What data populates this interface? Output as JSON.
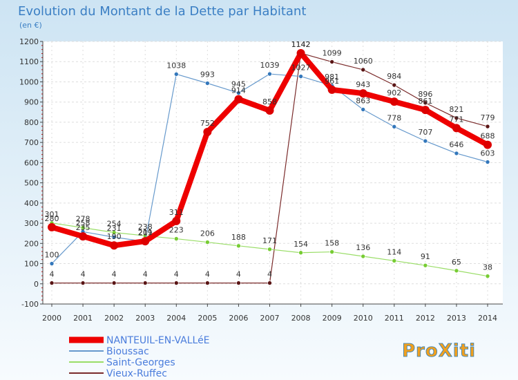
{
  "title": "Evolution du Montant de la Dette par Habitant",
  "unit": "(en €)",
  "logo": "ProXiti",
  "colors": {
    "bg_top": "#cde4f3",
    "bg_bottom": "#f7fbfe",
    "plot_bg": "#ffffff",
    "title": "#3b7fc4",
    "text": "#333333",
    "grid": "#dddddd",
    "axis": "#444444",
    "tick_mark": "#cc0000"
  },
  "chart_data": {
    "type": "line",
    "title": "Evolution du Montant de la Dette par Habitant",
    "ylabel": "(en €)",
    "xlabel": "",
    "ylim": [
      -100,
      1200
    ],
    "ystep": 100,
    "grid": true,
    "x": [
      "2000",
      "2001",
      "2002",
      "2003",
      "2004",
      "2005",
      "2006",
      "2007",
      "2008",
      "2009",
      "2010",
      "2011",
      "2012",
      "2013",
      "2014"
    ],
    "series": [
      {
        "name": "Vieux-Ruffec",
        "color": "#7a2a2a",
        "marker": "#5a1515",
        "width": 1.2,
        "values": [
          4,
          4,
          4,
          4,
          4,
          4,
          4,
          4,
          1142,
          1099,
          1060,
          984,
          896,
          821,
          779
        ]
      },
      {
        "name": "Saint-Georges",
        "color": "#99dd66",
        "marker": "#77cc33",
        "width": 1.2,
        "values": [
          301,
          278,
          254,
          238,
          223,
          206,
          188,
          171,
          154,
          158,
          136,
          114,
          91,
          65,
          38
        ]
      },
      {
        "name": "Bioussac",
        "color": "#6699cc",
        "marker": "#3377bb",
        "width": 1.2,
        "values": [
          100,
          258,
          231,
          209,
          1038,
          993,
          945,
          1039,
          1027,
          981,
          863,
          778,
          707,
          646,
          603
        ]
      },
      {
        "name": "NANTEUIL-EN-VALLéE",
        "color": "#ee0000",
        "marker": "#dd0000",
        "width": 8,
        "values": [
          280,
          235,
          190,
          211,
          311,
          752,
          914,
          858,
          1142,
          961,
          943,
          902,
          861,
          771,
          688
        ]
      }
    ],
    "legend_order": [
      "NANTEUIL-EN-VALLéE",
      "Bioussac",
      "Saint-Georges",
      "Vieux-Ruffec"
    ],
    "legend_placement": "bottom-left"
  }
}
